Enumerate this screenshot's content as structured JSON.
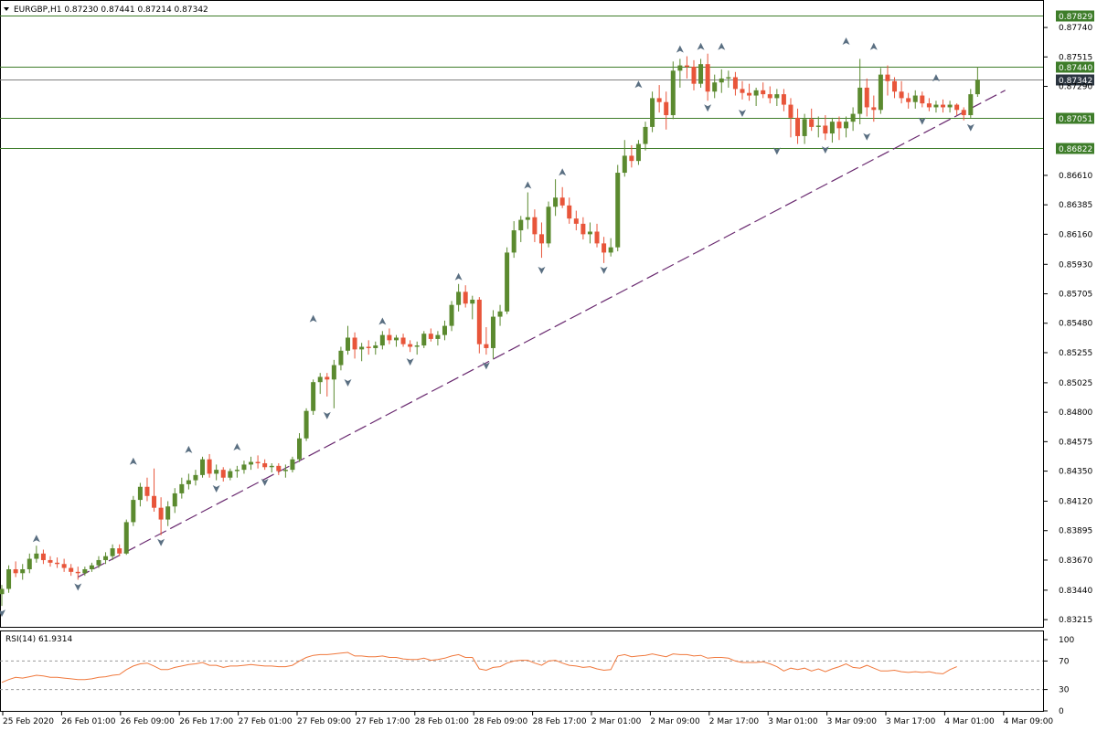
{
  "header": {
    "title": "EURGBP,H1  0.87230 0.87441 0.87214 0.87342",
    "menu_icon": "triangle-down-icon"
  },
  "colors": {
    "bull": "#5b8a2f",
    "bear": "#e8553a",
    "hline": "#3e7d2a",
    "trendline": "#6a2a70",
    "rsi": "#f0783c",
    "fractal": "#5a6f82",
    "tag_bg": "#3e7d2a",
    "price_tag_bg": "#2b3540"
  },
  "chart_data": [
    {
      "type": "candlestick",
      "title": "EURGBP,H1",
      "ohlc_header": {
        "open": 0.8723,
        "high": 0.87441,
        "low": 0.87214,
        "close": 0.87342
      },
      "ylim": [
        0.8316,
        0.8795
      ],
      "y_ticks": [
        "0.87740",
        "0.87515",
        "0.87290",
        "0.86610",
        "0.86385",
        "0.86160",
        "0.85930",
        "0.85705",
        "0.85480",
        "0.85255",
        "0.85025",
        "0.84800",
        "0.84575",
        "0.84350",
        "0.84120",
        "0.83895",
        "0.83670",
        "0.83440",
        "0.83215"
      ],
      "x_ticks": [
        "25 Feb 2020",
        "26 Feb 01:00",
        "26 Feb 09:00",
        "26 Feb 17:00",
        "27 Feb 01:00",
        "27 Feb 09:00",
        "27 Feb 17:00",
        "28 Feb 01:00",
        "28 Feb 09:00",
        "28 Feb 17:00",
        "2 Mar 01:00",
        "2 Mar 09:00",
        "2 Mar 17:00",
        "3 Mar 01:00",
        "3 Mar 09:00",
        "3 Mar 17:00",
        "4 Mar 01:00",
        "4 Mar 09:00"
      ],
      "horizontal_levels": [
        {
          "price": 0.87829,
          "label": "0.87829"
        },
        {
          "price": 0.8744,
          "label": "0.87440"
        },
        {
          "price": 0.87342,
          "label": "0.87342"
        },
        {
          "price": 0.87051,
          "label": "0.87051"
        },
        {
          "price": 0.86822,
          "label": "0.86822"
        }
      ],
      "current_price_label": "0.87342",
      "trendline": {
        "style": "dashed",
        "from": {
          "bar": 11,
          "price": 0.8354
        },
        "to": {
          "bar": 145,
          "price": 0.8726
        }
      },
      "candles": [
        [
          0.8341,
          0.8348,
          0.8332,
          0.8345
        ],
        [
          0.8345,
          0.8363,
          0.8342,
          0.836
        ],
        [
          0.836,
          0.8366,
          0.8354,
          0.8357
        ],
        [
          0.8357,
          0.8364,
          0.8352,
          0.836
        ],
        [
          0.836,
          0.8372,
          0.8357,
          0.8368
        ],
        [
          0.8368,
          0.8378,
          0.8365,
          0.8372
        ],
        [
          0.8372,
          0.8375,
          0.8364,
          0.8367
        ],
        [
          0.8367,
          0.837,
          0.8362,
          0.8365
        ],
        [
          0.8365,
          0.8369,
          0.8361,
          0.8364
        ],
        [
          0.8364,
          0.8368,
          0.8358,
          0.8361
        ],
        [
          0.8361,
          0.8364,
          0.8355,
          0.8358
        ],
        [
          0.8358,
          0.8362,
          0.8352,
          0.8357
        ],
        [
          0.8357,
          0.8362,
          0.8355,
          0.836
        ],
        [
          0.836,
          0.8365,
          0.8358,
          0.8363
        ],
        [
          0.8363,
          0.837,
          0.8361,
          0.8367
        ],
        [
          0.8367,
          0.8373,
          0.8364,
          0.837
        ],
        [
          0.837,
          0.8379,
          0.8367,
          0.8376
        ],
        [
          0.8376,
          0.8379,
          0.837,
          0.8372
        ],
        [
          0.8372,
          0.8398,
          0.8371,
          0.8396
        ],
        [
          0.8396,
          0.8416,
          0.8393,
          0.8413
        ],
        [
          0.8413,
          0.8426,
          0.8408,
          0.8423
        ],
        [
          0.8423,
          0.843,
          0.8412,
          0.8416
        ],
        [
          0.8416,
          0.8437,
          0.8404,
          0.8407
        ],
        [
          0.8407,
          0.8415,
          0.8386,
          0.8398
        ],
        [
          0.8398,
          0.8412,
          0.8393,
          0.8408
        ],
        [
          0.8408,
          0.8422,
          0.8403,
          0.8418
        ],
        [
          0.8418,
          0.843,
          0.8414,
          0.8425
        ],
        [
          0.8425,
          0.8433,
          0.8421,
          0.8428
        ],
        [
          0.8428,
          0.8436,
          0.8424,
          0.8432
        ],
        [
          0.8432,
          0.8446,
          0.843,
          0.8444
        ],
        [
          0.8444,
          0.8448,
          0.843,
          0.8433
        ],
        [
          0.8433,
          0.844,
          0.8428,
          0.8436
        ],
        [
          0.8436,
          0.8438,
          0.8427,
          0.843
        ],
        [
          0.843,
          0.8437,
          0.8428,
          0.8435
        ],
        [
          0.8435,
          0.8439,
          0.843,
          0.8436
        ],
        [
          0.8436,
          0.8443,
          0.8433,
          0.844
        ],
        [
          0.844,
          0.8446,
          0.8436,
          0.8442
        ],
        [
          0.8442,
          0.8447,
          0.8437,
          0.8441
        ],
        [
          0.8441,
          0.8444,
          0.8436,
          0.8438
        ],
        [
          0.8438,
          0.8441,
          0.8434,
          0.8439
        ],
        [
          0.8439,
          0.8441,
          0.8432,
          0.8435
        ],
        [
          0.8435,
          0.844,
          0.843,
          0.8436
        ],
        [
          0.8436,
          0.8446,
          0.8434,
          0.8444
        ],
        [
          0.8444,
          0.8464,
          0.8442,
          0.846
        ],
        [
          0.846,
          0.8483,
          0.8458,
          0.8481
        ],
        [
          0.8481,
          0.8505,
          0.8478,
          0.8503
        ],
        [
          0.8503,
          0.851,
          0.8494,
          0.8507
        ],
        [
          0.8507,
          0.851,
          0.8492,
          0.8505
        ],
        [
          0.8505,
          0.852,
          0.8483,
          0.8516
        ],
        [
          0.8516,
          0.853,
          0.8512,
          0.8527
        ],
        [
          0.8527,
          0.8546,
          0.8524,
          0.8537
        ],
        [
          0.8537,
          0.8541,
          0.8521,
          0.8528
        ],
        [
          0.8528,
          0.8533,
          0.8519,
          0.853
        ],
        [
          0.853,
          0.8535,
          0.8524,
          0.8529
        ],
        [
          0.8529,
          0.8534,
          0.8524,
          0.8531
        ],
        [
          0.8531,
          0.8542,
          0.8528,
          0.8539
        ],
        [
          0.8539,
          0.8544,
          0.8532,
          0.8535
        ],
        [
          0.8535,
          0.8539,
          0.853,
          0.8537
        ],
        [
          0.8537,
          0.854,
          0.853,
          0.8532
        ],
        [
          0.8532,
          0.8535,
          0.8526,
          0.853
        ],
        [
          0.853,
          0.8534,
          0.8524,
          0.8531
        ],
        [
          0.8531,
          0.8542,
          0.8529,
          0.854
        ],
        [
          0.854,
          0.8544,
          0.8534,
          0.8536
        ],
        [
          0.8536,
          0.8542,
          0.8531,
          0.8539
        ],
        [
          0.8539,
          0.855,
          0.8535,
          0.8546
        ],
        [
          0.8546,
          0.8565,
          0.8542,
          0.8562
        ],
        [
          0.8562,
          0.8578,
          0.8557,
          0.8572
        ],
        [
          0.8572,
          0.8577,
          0.856,
          0.8563
        ],
        [
          0.8563,
          0.8569,
          0.8551,
          0.8566
        ],
        [
          0.8566,
          0.8568,
          0.8525,
          0.8532
        ],
        [
          0.8532,
          0.8545,
          0.8524,
          0.8529
        ],
        [
          0.8529,
          0.8558,
          0.8521,
          0.8553
        ],
        [
          0.8553,
          0.8562,
          0.8546,
          0.8557
        ],
        [
          0.8557,
          0.8606,
          0.8555,
          0.8602
        ],
        [
          0.8602,
          0.8626,
          0.8598,
          0.8619
        ],
        [
          0.8619,
          0.863,
          0.861,
          0.8627
        ],
        [
          0.8627,
          0.8648,
          0.862,
          0.8629
        ],
        [
          0.8629,
          0.8635,
          0.861,
          0.8616
        ],
        [
          0.8616,
          0.8625,
          0.8598,
          0.8609
        ],
        [
          0.8609,
          0.8641,
          0.8606,
          0.8637
        ],
        [
          0.8637,
          0.8658,
          0.863,
          0.8644
        ],
        [
          0.8644,
          0.8652,
          0.8636,
          0.8638
        ],
        [
          0.8638,
          0.8644,
          0.8624,
          0.8628
        ],
        [
          0.8628,
          0.8634,
          0.8619,
          0.8624
        ],
        [
          0.8624,
          0.8629,
          0.8612,
          0.8616
        ],
        [
          0.8616,
          0.8625,
          0.8609,
          0.8618
        ],
        [
          0.8618,
          0.8624,
          0.8606,
          0.8609
        ],
        [
          0.8609,
          0.8614,
          0.8594,
          0.8602
        ],
        [
          0.8602,
          0.8613,
          0.8599,
          0.8606
        ],
        [
          0.8606,
          0.8669,
          0.8603,
          0.8663
        ],
        [
          0.8663,
          0.8688,
          0.866,
          0.8676
        ],
        [
          0.8676,
          0.8684,
          0.8667,
          0.8672
        ],
        [
          0.8672,
          0.8688,
          0.8669,
          0.8685
        ],
        [
          0.8685,
          0.8702,
          0.868,
          0.8698
        ],
        [
          0.8698,
          0.8725,
          0.8694,
          0.872
        ],
        [
          0.872,
          0.873,
          0.8709,
          0.8717
        ],
        [
          0.8717,
          0.8725,
          0.8696,
          0.8707
        ],
        [
          0.8707,
          0.8748,
          0.8704,
          0.8741
        ],
        [
          0.8741,
          0.875,
          0.8728,
          0.8745
        ],
        [
          0.8745,
          0.8752,
          0.8735,
          0.8744
        ],
        [
          0.8744,
          0.8749,
          0.8726,
          0.8731
        ],
        [
          0.8731,
          0.875,
          0.8728,
          0.8746
        ],
        [
          0.8746,
          0.8754,
          0.8718,
          0.8725
        ],
        [
          0.8725,
          0.8738,
          0.872,
          0.8732
        ],
        [
          0.8732,
          0.8742,
          0.8724,
          0.8735
        ],
        [
          0.8735,
          0.8741,
          0.8728,
          0.8736
        ],
        [
          0.8736,
          0.874,
          0.8722,
          0.8727
        ],
        [
          0.8727,
          0.8733,
          0.8719,
          0.8724
        ],
        [
          0.8724,
          0.8731,
          0.8718,
          0.8722
        ],
        [
          0.8722,
          0.8728,
          0.8714,
          0.8726
        ],
        [
          0.8726,
          0.8732,
          0.872,
          0.8723
        ],
        [
          0.8723,
          0.8729,
          0.8716,
          0.872
        ],
        [
          0.872,
          0.8727,
          0.8714,
          0.8723
        ],
        [
          0.8723,
          0.8727,
          0.871,
          0.8715
        ],
        [
          0.8715,
          0.872,
          0.869,
          0.8705
        ],
        [
          0.8705,
          0.8712,
          0.8685,
          0.8691
        ],
        [
          0.8691,
          0.8708,
          0.8685,
          0.8704
        ],
        [
          0.8704,
          0.8712,
          0.8695,
          0.8698
        ],
        [
          0.8698,
          0.8706,
          0.869,
          0.8699
        ],
        [
          0.8699,
          0.8707,
          0.8688,
          0.8693
        ],
        [
          0.8693,
          0.8705,
          0.8686,
          0.8702
        ],
        [
          0.8702,
          0.8706,
          0.8688,
          0.8697
        ],
        [
          0.8697,
          0.8706,
          0.869,
          0.8702
        ],
        [
          0.8702,
          0.8713,
          0.8695,
          0.8708
        ],
        [
          0.8708,
          0.875,
          0.87,
          0.8728
        ],
        [
          0.8728,
          0.8735,
          0.8706,
          0.8713
        ],
        [
          0.8713,
          0.8722,
          0.8702,
          0.8711
        ],
        [
          0.8711,
          0.8743,
          0.8708,
          0.8738
        ],
        [
          0.8738,
          0.8745,
          0.8722,
          0.8733
        ],
        [
          0.8733,
          0.8736,
          0.872,
          0.8725
        ],
        [
          0.8725,
          0.8733,
          0.8716,
          0.872
        ],
        [
          0.872,
          0.8724,
          0.8712,
          0.8717
        ],
        [
          0.8717,
          0.8726,
          0.8712,
          0.8722
        ],
        [
          0.8722,
          0.8725,
          0.8713,
          0.8716
        ],
        [
          0.8716,
          0.872,
          0.871,
          0.8713
        ],
        [
          0.8713,
          0.8718,
          0.8709,
          0.8715
        ],
        [
          0.8715,
          0.8719,
          0.8709,
          0.8713
        ],
        [
          0.8713,
          0.8718,
          0.8709,
          0.8715
        ],
        [
          0.8715,
          0.8716,
          0.8707,
          0.8711
        ],
        [
          0.8711,
          0.8713,
          0.8703,
          0.8707
        ],
        [
          0.8707,
          0.8727,
          0.8705,
          0.8723
        ],
        [
          0.8723,
          0.8744,
          0.8721,
          0.8734
        ]
      ],
      "fractals_up": [
        [
          5,
          0.8378
        ],
        [
          19,
          0.8437
        ],
        [
          27,
          0.8446
        ],
        [
          34,
          0.8448
        ],
        [
          45,
          0.8546
        ],
        [
          55,
          0.8544
        ],
        [
          66,
          0.8578
        ],
        [
          76,
          0.8648
        ],
        [
          81,
          0.8658
        ],
        [
          92,
          0.8725
        ],
        [
          98,
          0.8752
        ],
        [
          101,
          0.8754
        ],
        [
          104,
          0.8754
        ],
        [
          122,
          0.8758
        ],
        [
          126,
          0.8754
        ],
        [
          135,
          0.873
        ]
      ],
      "fractals_down": [
        [
          0,
          0.8332
        ],
        [
          11,
          0.8352
        ],
        [
          23,
          0.8386
        ],
        [
          31,
          0.8427
        ],
        [
          38,
          0.8432
        ],
        [
          47,
          0.8483
        ],
        [
          50,
          0.8508
        ],
        [
          59,
          0.8524
        ],
        [
          70,
          0.8521
        ],
        [
          78,
          0.8594
        ],
        [
          87,
          0.8594
        ],
        [
          102,
          0.8718
        ],
        [
          107,
          0.8714
        ],
        [
          112,
          0.8685
        ],
        [
          119,
          0.8686
        ],
        [
          125,
          0.8696
        ],
        [
          133,
          0.8708
        ],
        [
          140,
          0.8703
        ]
      ]
    },
    {
      "type": "line",
      "title": "RSI(14) 61.9314",
      "ylim": [
        0,
        100
      ],
      "y_ticks": [
        "100",
        "70",
        "30",
        "0"
      ],
      "levels": [
        70,
        30
      ],
      "values": [
        40,
        44,
        47,
        46,
        48,
        50,
        49,
        47,
        47,
        46,
        45,
        44,
        44,
        45,
        47,
        48,
        50,
        51,
        58,
        63,
        66,
        67,
        63,
        58,
        58,
        61,
        63,
        65,
        66,
        68,
        64,
        64,
        61,
        63,
        63,
        64,
        65,
        64,
        63,
        63,
        62,
        62,
        64,
        70,
        75,
        78,
        79,
        79,
        80,
        81,
        82,
        77,
        77,
        76,
        76,
        77,
        75,
        75,
        73,
        72,
        72,
        74,
        71,
        72,
        74,
        77,
        79,
        75,
        75,
        59,
        57,
        61,
        62,
        67,
        70,
        71,
        71,
        67,
        64,
        70,
        71,
        67,
        64,
        63,
        61,
        62,
        59,
        57,
        58,
        77,
        79,
        76,
        77,
        78,
        80,
        78,
        76,
        80,
        79,
        79,
        77,
        78,
        74,
        75,
        75,
        74,
        70,
        68,
        68,
        68,
        69,
        66,
        62,
        56,
        60,
        58,
        60,
        56,
        59,
        55,
        59,
        62,
        66,
        61,
        60,
        64,
        60,
        56,
        56,
        57,
        55,
        54,
        55,
        54,
        55,
        53,
        52,
        58,
        62
      ]
    }
  ]
}
